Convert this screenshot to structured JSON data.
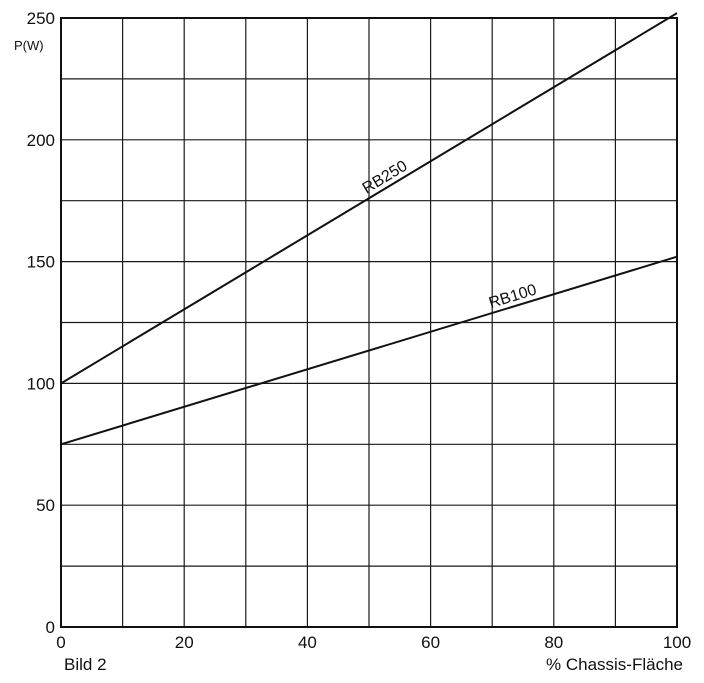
{
  "chart_data": {
    "type": "line",
    "title": "",
    "xlabel": "% Chassis-Fläche",
    "ylabel": "P(W)",
    "caption": "Bild 2",
    "xlim": [
      0,
      100
    ],
    "ylim": [
      0,
      250
    ],
    "x_major_ticks": [
      0,
      20,
      40,
      60,
      80,
      100
    ],
    "y_major_ticks": [
      0,
      50,
      100,
      150,
      200,
      250
    ],
    "x_tick_labels": [
      "0",
      "20",
      "40",
      "60",
      "80",
      "100"
    ],
    "y_tick_labels": [
      "0",
      "50",
      "100",
      "150",
      "200",
      "250"
    ],
    "x_grid_step": 10,
    "y_grid_step": 25,
    "grid": true,
    "legend": "none",
    "series": [
      {
        "name": "RB250",
        "x": [
          0,
          100
        ],
        "y": [
          100,
          252
        ],
        "label_at_x": 50
      },
      {
        "name": "RB100",
        "x": [
          0,
          100
        ],
        "y": [
          75,
          152
        ],
        "label_at_x": 70
      }
    ]
  }
}
